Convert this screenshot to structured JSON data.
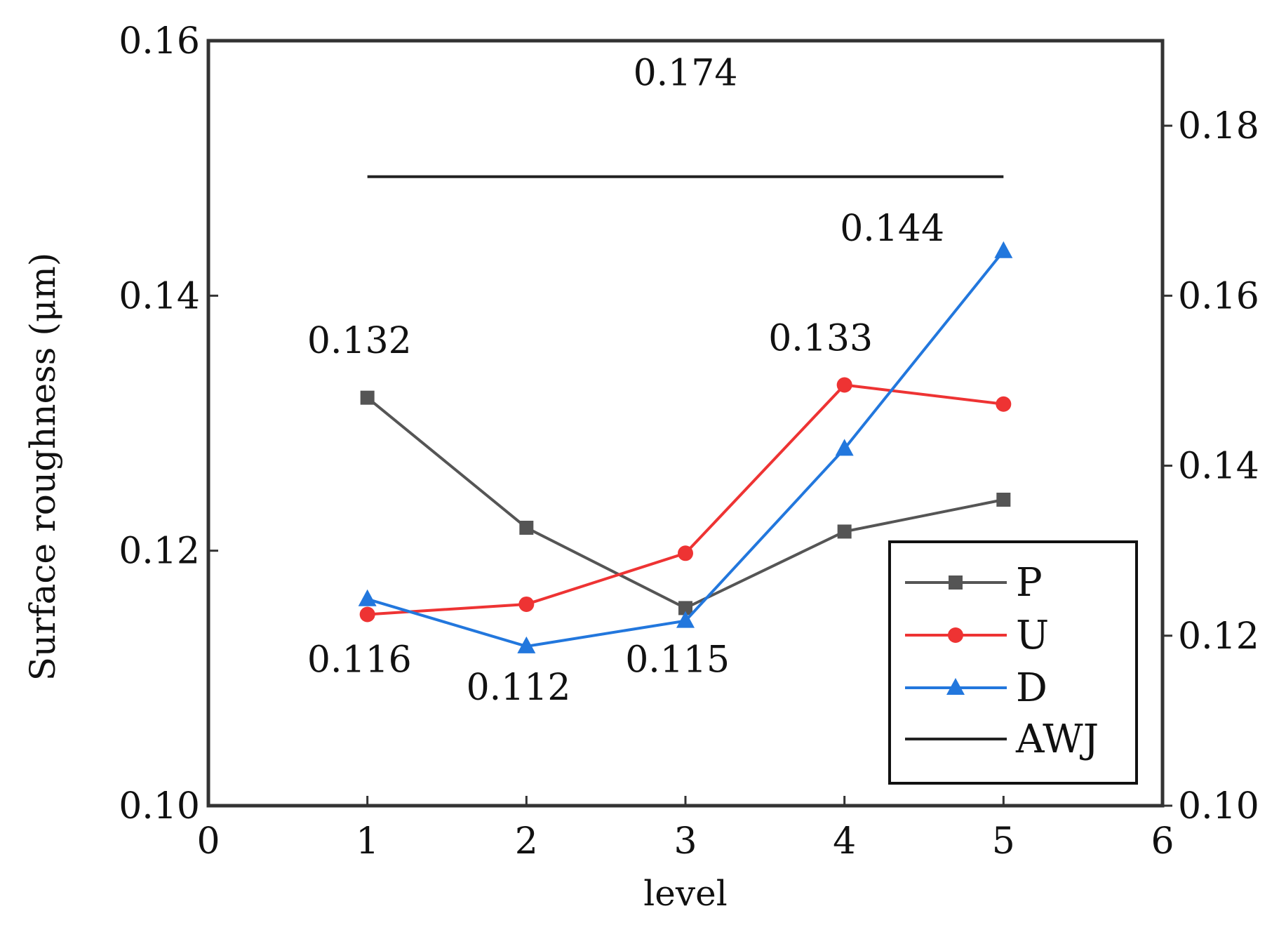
{
  "chart_data": {
    "type": "line",
    "title": "",
    "xlabel": "level",
    "ylabel": "Surface roughness (μm)",
    "xlim": [
      0,
      6
    ],
    "ylim": [
      0.1,
      0.16
    ],
    "y2lim": [
      0.1,
      0.19
    ],
    "xticks": [
      "0",
      "1",
      "2",
      "3",
      "4",
      "5",
      "6"
    ],
    "yticks": [
      "0.10",
      "0.12",
      "0.14",
      "0.16"
    ],
    "y2ticks": [
      "0.10",
      "0.12",
      "0.14",
      "0.16",
      "0.18"
    ],
    "x": [
      1,
      2,
      3,
      4,
      5
    ],
    "series": [
      {
        "name": "P",
        "color": "#555555",
        "marker": "square",
        "values": [
          0.132,
          0.1218,
          0.1155,
          0.1215,
          0.124
        ]
      },
      {
        "name": "U",
        "color": "#ee3333",
        "marker": "circle",
        "values": [
          0.115,
          0.1158,
          0.1198,
          0.133,
          0.1315
        ]
      },
      {
        "name": "D",
        "color": "#2277dd",
        "marker": "triangle",
        "values": [
          0.1162,
          0.1125,
          0.1145,
          0.128,
          0.1435
        ]
      },
      {
        "name": "AWJ",
        "color": "#222222",
        "marker": "none",
        "x_range": [
          1,
          5
        ],
        "value": 0.174,
        "axis": "right"
      }
    ],
    "annotations": [
      {
        "text": "0.174",
        "x": 3,
        "y": 0.1565
      },
      {
        "text": "0.132",
        "x": 0.95,
        "y": 0.1355
      },
      {
        "text": "0.116",
        "x": 0.95,
        "y": 0.1105
      },
      {
        "text": "0.112",
        "x": 1.95,
        "y": 0.1083
      },
      {
        "text": "0.115",
        "x": 2.95,
        "y": 0.1105
      },
      {
        "text": "0.133",
        "x": 3.85,
        "y": 0.1357
      },
      {
        "text": "0.144",
        "x": 4.3,
        "y": 0.1443
      }
    ],
    "legend_position": "bottom-right",
    "grid": false
  }
}
